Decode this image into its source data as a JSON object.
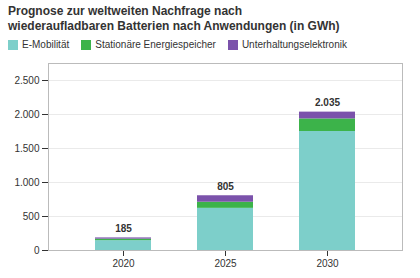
{
  "chart_data": {
    "type": "bar",
    "stacked": true,
    "title": "Prognose zur weltweiten Nachfrage nach",
    "subtitle": "wiederaufladbaren Batterien nach Anwendungen (in GWh)",
    "categories": [
      "2020",
      "2025",
      "2030"
    ],
    "series": [
      {
        "name": "E-Mobilität",
        "color": "#7dcfca",
        "values": [
          145,
          620,
          1750
        ]
      },
      {
        "name": "Stationäre Energiespeicher",
        "color": "#3cb34a",
        "values": [
          22,
          90,
          185
        ]
      },
      {
        "name": "Unterhaltungselektronik",
        "color": "#7b52ab",
        "values": [
          18,
          95,
          100
        ]
      }
    ],
    "totals": [
      185,
      805,
      2035
    ],
    "total_labels": [
      "185",
      "805",
      "2.035"
    ],
    "ylim": [
      0,
      2750
    ],
    "yticks": [
      0,
      500,
      {
        "value": 1000,
        "label": "1.000"
      },
      {
        "value": 1500,
        "label": "1.500"
      },
      {
        "value": 2000,
        "label": "2.000"
      },
      {
        "value": 2500,
        "label": "2.500"
      }
    ],
    "grid": true,
    "legend": "top"
  }
}
